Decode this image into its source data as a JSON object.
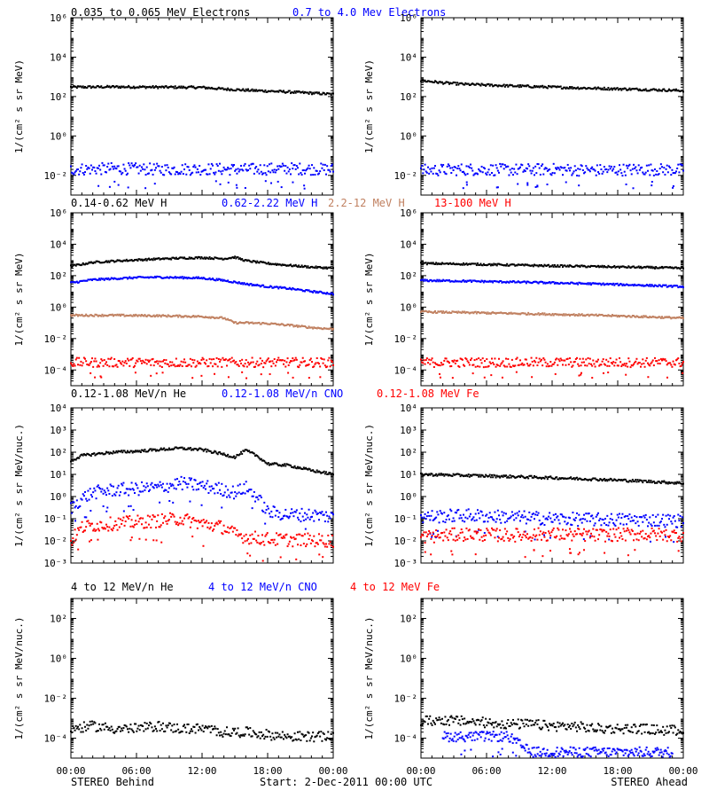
{
  "legends": [
    [
      {
        "text": "0.035 to 0.065 MeV Electrons",
        "color": "#000000"
      },
      {
        "text": "0.7 to 4.0 Mev Electrons",
        "color": "#0000ff"
      }
    ],
    [
      {
        "text": "0.14-0.62 MeV H",
        "color": "#000000"
      },
      {
        "text": "0.62-2.22 MeV H",
        "color": "#0000ff"
      },
      {
        "text": "2.2-12 MeV H",
        "color": "#c08060"
      },
      {
        "text": "13-100 MeV H",
        "color": "#ff0000"
      }
    ],
    [
      {
        "text": "0.12-1.08 MeV/n He",
        "color": "#000000"
      },
      {
        "text": "0.12-1.08 MeV/n CNO",
        "color": "#0000ff"
      },
      {
        "text": "0.12-1.08 MeV Fe",
        "color": "#ff0000"
      }
    ],
    [
      {
        "text": "4 to 12 MeV/n He",
        "color": "#000000"
      },
      {
        "text": "4 to 12 MeV/n CNO",
        "color": "#0000ff"
      },
      {
        "text": "4 to 12 MeV Fe",
        "color": "#ff0000"
      }
    ]
  ],
  "ylabels": [
    "1/(cm² s sr MeV)",
    "1/(cm² s sr MeV)",
    "1/(cm² s sr MeV/nuc.)",
    "1/(cm² s sr MeV/nuc.)"
  ],
  "footer": {
    "left": "STEREO Behind",
    "center": "Start:  2-Dec-2011 00:00 UTC",
    "right": "STEREO Ahead"
  },
  "chart_data": [
    {
      "type": "scatter",
      "panel_row": 1,
      "spacecraft": "STEREO Behind",
      "log_y": true,
      "ylim": [
        0.001,
        1000000
      ],
      "y_ticks": [
        0.01,
        1,
        100,
        10000,
        1000000
      ],
      "y_tick_labels": [
        "10⁻²",
        "10⁰",
        "10²",
        "10⁴",
        "10⁶"
      ],
      "x_ticks": [
        "00:00",
        "06:00",
        "12:00",
        "18:00",
        "00:00"
      ],
      "xlim_hours": [
        0,
        24
      ],
      "series": [
        {
          "name": "0.035 to 0.065 MeV Electrons",
          "color": "#000000",
          "x": [
            0,
            4,
            8,
            12,
            14,
            16,
            18,
            20,
            22,
            24
          ],
          "y": [
            300,
            310,
            300,
            290,
            240,
            210,
            190,
            170,
            150,
            130
          ]
        },
        {
          "name": "0.7 to 4.0 Mev Electrons",
          "color": "#0000ff",
          "x": [
            0,
            4,
            8,
            12,
            16,
            20,
            24
          ],
          "y": [
            0.02,
            0.022,
            0.02,
            0.021,
            0.02,
            0.022,
            0.02
          ]
        }
      ]
    },
    {
      "type": "scatter",
      "panel_row": 1,
      "spacecraft": "STEREO Ahead",
      "log_y": true,
      "ylim": [
        0.001,
        1000000
      ],
      "y_ticks": [
        0.01,
        1,
        100,
        10000,
        1000000
      ],
      "y_tick_labels": [
        "10⁻²",
        "10⁰",
        "10²",
        "10⁴",
        "10⁶"
      ],
      "x_ticks": [
        "00:00",
        "06:00",
        "12:00",
        "18:00",
        "00:00"
      ],
      "xlim_hours": [
        0,
        24
      ],
      "series": [
        {
          "name": "0.035 to 0.065 MeV Electrons",
          "color": "#000000",
          "x": [
            0,
            2,
            4,
            8,
            12,
            16,
            20,
            24
          ],
          "y": [
            650,
            500,
            420,
            350,
            300,
            260,
            230,
            200
          ]
        },
        {
          "name": "0.7 to 4.0 Mev Electrons",
          "color": "#0000ff",
          "x": [
            0,
            4,
            8,
            12,
            16,
            20,
            24
          ],
          "y": [
            0.018,
            0.02,
            0.019,
            0.02,
            0.018,
            0.02,
            0.019
          ]
        }
      ]
    },
    {
      "type": "scatter",
      "panel_row": 2,
      "spacecraft": "STEREO Behind",
      "log_y": true,
      "ylim": [
        1e-05,
        1000000
      ],
      "y_ticks": [
        0.0001,
        0.01,
        1,
        100,
        10000,
        1000000
      ],
      "y_tick_labels": [
        "10⁻⁴",
        "10⁻²",
        "10⁰",
        "10²",
        "10⁴",
        "10⁶"
      ],
      "x_ticks": [
        "00:00",
        "06:00",
        "12:00",
        "18:00",
        "00:00"
      ],
      "xlim_hours": [
        0,
        24
      ],
      "series": [
        {
          "name": "0.14-0.62 MeV H",
          "color": "#000000",
          "x": [
            0,
            2,
            4,
            6,
            8,
            10,
            12,
            14,
            15,
            16,
            18,
            20,
            22,
            24
          ],
          "y": [
            400,
            700,
            850,
            1000,
            1150,
            1300,
            1400,
            1200,
            1500,
            900,
            600,
            450,
            350,
            300
          ]
        },
        {
          "name": "0.62-2.22 MeV H",
          "color": "#0000ff",
          "x": [
            0,
            2,
            4,
            6,
            8,
            10,
            12,
            14,
            16,
            18,
            20,
            22,
            24
          ],
          "y": [
            35,
            55,
            65,
            75,
            80,
            75,
            70,
            50,
            30,
            20,
            15,
            10,
            7
          ]
        },
        {
          "name": "2.2-12 MeV H",
          "color": "#c08060",
          "x": [
            0,
            4,
            8,
            12,
            14,
            15,
            16,
            18,
            20,
            22,
            24
          ],
          "y": [
            0.3,
            0.3,
            0.28,
            0.25,
            0.2,
            0.1,
            0.1,
            0.09,
            0.07,
            0.05,
            0.04
          ]
        },
        {
          "name": "13-100 MeV H",
          "color": "#ff0000",
          "x": [
            0,
            4,
            8,
            12,
            16,
            20,
            24
          ],
          "y": [
            0.0003,
            0.0003,
            0.0003,
            0.0003,
            0.0003,
            0.0003,
            0.0003
          ]
        }
      ]
    },
    {
      "type": "scatter",
      "panel_row": 2,
      "spacecraft": "STEREO Ahead",
      "log_y": true,
      "ylim": [
        1e-05,
        1000000
      ],
      "y_ticks": [
        0.0001,
        0.01,
        1,
        100,
        10000,
        1000000
      ],
      "y_tick_labels": [
        "10⁻⁴",
        "10⁻²",
        "10⁰",
        "10²",
        "10⁴",
        "10⁶"
      ],
      "x_ticks": [
        "00:00",
        "06:00",
        "12:00",
        "18:00",
        "00:00"
      ],
      "xlim_hours": [
        0,
        24
      ],
      "series": [
        {
          "name": "0.14-0.62 MeV H",
          "color": "#000000",
          "x": [
            0,
            4,
            8,
            12,
            16,
            20,
            24
          ],
          "y": [
            600,
            550,
            480,
            420,
            380,
            340,
            300
          ]
        },
        {
          "name": "0.62-2.22 MeV H",
          "color": "#0000ff",
          "x": [
            0,
            4,
            8,
            12,
            16,
            20,
            24
          ],
          "y": [
            50,
            45,
            40,
            35,
            30,
            25,
            20
          ]
        },
        {
          "name": "2.2-12 MeV H",
          "color": "#c08060",
          "x": [
            0,
            4,
            8,
            12,
            16,
            20,
            24
          ],
          "y": [
            0.5,
            0.45,
            0.4,
            0.35,
            0.3,
            0.25,
            0.2
          ]
        },
        {
          "name": "13-100 MeV H",
          "color": "#ff0000",
          "x": [
            0,
            4,
            8,
            12,
            16,
            20,
            24
          ],
          "y": [
            0.0003,
            0.0003,
            0.0003,
            0.0003,
            0.0003,
            0.0003,
            0.0003
          ]
        }
      ]
    },
    {
      "type": "scatter",
      "panel_row": 3,
      "spacecraft": "STEREO Behind",
      "log_y": true,
      "ylim": [
        0.001,
        10000
      ],
      "y_ticks": [
        0.001,
        0.01,
        0.1,
        1,
        10,
        100,
        1000,
        10000
      ],
      "y_tick_labels": [
        "10⁻³",
        "10⁻²",
        "10⁻¹",
        "10⁰",
        "10¹",
        "10²",
        "10³",
        "10⁴"
      ],
      "x_ticks": [
        "00:00",
        "06:00",
        "12:00",
        "18:00",
        "00:00"
      ],
      "xlim_hours": [
        0,
        24
      ],
      "series": [
        {
          "name": "0.12-1.08 MeV/n He",
          "color": "#000000",
          "x": [
            0,
            1,
            2,
            4,
            6,
            8,
            10,
            12,
            14,
            15,
            16,
            17,
            18,
            20,
            22,
            24
          ],
          "y": [
            40,
            70,
            80,
            100,
            110,
            130,
            150,
            130,
            80,
            60,
            120,
            70,
            30,
            25,
            15,
            10
          ]
        },
        {
          "name": "0.12-1.08 MeV/n CNO",
          "color": "#0000ff",
          "x": [
            0,
            1,
            2,
            4,
            6,
            8,
            10,
            12,
            14,
            15,
            16,
            17,
            18,
            20,
            22,
            24
          ],
          "y": [
            0.3,
            0.8,
            1.5,
            2,
            2.2,
            2.5,
            4,
            3,
            2,
            1.5,
            2.5,
            1,
            0.2,
            0.15,
            0.15,
            0.12
          ]
        },
        {
          "name": "0.12-1.08 MeV Fe",
          "color": "#ff0000",
          "x": [
            0,
            1,
            2,
            4,
            6,
            8,
            10,
            12,
            14,
            15,
            16,
            18,
            20,
            22,
            24
          ],
          "y": [
            0.01,
            0.04,
            0.05,
            0.06,
            0.07,
            0.08,
            0.1,
            0.06,
            0.04,
            0.02,
            0.015,
            0.012,
            0.011,
            0.011,
            0.01
          ]
        }
      ]
    },
    {
      "type": "scatter",
      "panel_row": 3,
      "spacecraft": "STEREO Ahead",
      "log_y": true,
      "ylim": [
        0.001,
        10000
      ],
      "y_ticks": [
        0.001,
        0.01,
        0.1,
        1,
        10,
        100,
        1000,
        10000
      ],
      "y_tick_labels": [
        "10⁻³",
        "10⁻²",
        "10⁻¹",
        "10⁰",
        "10¹",
        "10²",
        "10³",
        "10⁴"
      ],
      "x_ticks": [
        "00:00",
        "06:00",
        "12:00",
        "18:00",
        "00:00"
      ],
      "xlim_hours": [
        0,
        24
      ],
      "series": [
        {
          "name": "0.12-1.08 MeV/n He",
          "color": "#000000",
          "x": [
            0,
            4,
            8,
            12,
            16,
            20,
            24
          ],
          "y": [
            10,
            9,
            8,
            7,
            6,
            5,
            4
          ]
        },
        {
          "name": "0.12-1.08 MeV/n CNO",
          "color": "#0000ff",
          "x": [
            0,
            4,
            8,
            12,
            16,
            20,
            24
          ],
          "y": [
            0.12,
            0.14,
            0.12,
            0.1,
            0.09,
            0.09,
            0.08
          ]
        },
        {
          "name": "0.12-1.08 MeV Fe",
          "color": "#ff0000",
          "x": [
            0,
            4,
            8,
            12,
            16,
            20,
            24
          ],
          "y": [
            0.015,
            0.02,
            0.018,
            0.02,
            0.018,
            0.02,
            0.018
          ]
        }
      ]
    },
    {
      "type": "scatter",
      "panel_row": 4,
      "spacecraft": "STEREO Behind",
      "log_y": true,
      "ylim": [
        1e-05,
        1000
      ],
      "y_ticks": [
        0.0001,
        0.01,
        1,
        100
      ],
      "y_tick_labels": [
        "10⁻⁴",
        "10⁻²",
        "10⁰",
        "10²"
      ],
      "x_ticks": [
        "00:00",
        "06:00",
        "12:00",
        "18:00",
        "00:00"
      ],
      "xlim_hours": [
        0,
        24
      ],
      "series": [
        {
          "name": "4 to 12 MeV/n He",
          "color": "#000000",
          "x": [
            0,
            2,
            4,
            6,
            8,
            10,
            12,
            14,
            16,
            18,
            20,
            22,
            24
          ],
          "y": [
            0.0003,
            0.0004,
            0.0003,
            0.0003,
            0.0004,
            0.0003,
            0.0003,
            0.0002,
            0.0002,
            0.00015,
            0.00012,
            0.00012,
            0.00012
          ]
        }
      ]
    },
    {
      "type": "scatter",
      "panel_row": 4,
      "spacecraft": "STEREO Ahead",
      "log_y": true,
      "ylim": [
        1e-05,
        1000
      ],
      "y_ticks": [
        0.0001,
        0.01,
        1,
        100
      ],
      "y_tick_labels": [
        "10⁻⁴",
        "10⁻²",
        "10⁰",
        "10²"
      ],
      "x_ticks": [
        "00:00",
        "06:00",
        "12:00",
        "18:00",
        "00:00"
      ],
      "xlim_hours": [
        0,
        24
      ],
      "series": [
        {
          "name": "4 to 12 MeV/n He",
          "color": "#000000",
          "x": [
            0,
            2,
            4,
            6,
            8,
            10,
            12,
            14,
            16,
            18,
            20,
            22,
            24
          ],
          "y": [
            0.0007,
            0.0008,
            0.0007,
            0.0006,
            0.0005,
            0.0005,
            0.0004,
            0.0004,
            0.0003,
            0.0003,
            0.0003,
            0.00025,
            0.00025
          ]
        },
        {
          "name": "4 to 12 MeV/n CNO",
          "color": "#0000ff",
          "x": [
            2,
            5,
            8,
            10,
            14,
            17,
            20,
            23
          ],
          "y": [
            0.00012,
            0.00012,
            0.00012,
            2e-05,
            2e-05,
            2e-05,
            2e-05,
            2e-05
          ]
        }
      ]
    }
  ]
}
